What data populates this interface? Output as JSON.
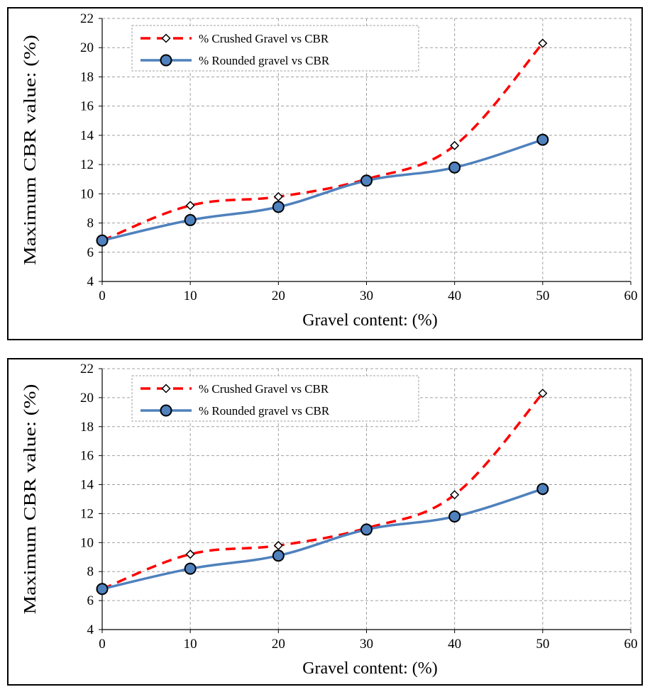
{
  "chart_data": [
    {
      "type": "line",
      "xlabel": "Gravel content: (%)",
      "ylabel": "Maximum CBR value: (%)",
      "xlim": [
        0,
        60
      ],
      "ylim": [
        4,
        22
      ],
      "xticks": [
        "0",
        "10",
        "20",
        "30",
        "40",
        "50",
        "60"
      ],
      "yticks": [
        "4",
        "6",
        "8",
        "10",
        "12",
        "14",
        "16",
        "18",
        "20",
        "22"
      ],
      "grid": true,
      "legend_position": "top-left",
      "x": [
        0,
        10,
        20,
        30,
        40,
        50
      ],
      "series": [
        {
          "name": "% Crushed Gravel vs CBR",
          "values": [
            6.8,
            9.2,
            9.8,
            11.0,
            13.3,
            20.3
          ],
          "color": "#ff0000",
          "line": "dashed",
          "marker": "diamond-open"
        },
        {
          "name": "% Rounded gravel vs CBR",
          "values": [
            6.8,
            8.2,
            9.1,
            10.9,
            11.8,
            13.7
          ],
          "color": "#4f81bd",
          "line": "solid",
          "marker": "circle"
        }
      ]
    },
    {
      "type": "line",
      "xlabel": "Gravel content: (%)",
      "ylabel": "Maximum CBR value: (%)",
      "xlim": [
        0,
        60
      ],
      "ylim": [
        4,
        22
      ],
      "xticks": [
        "0",
        "10",
        "20",
        "30",
        "40",
        "50",
        "60"
      ],
      "yticks": [
        "4",
        "6",
        "8",
        "10",
        "12",
        "14",
        "16",
        "18",
        "20",
        "22"
      ],
      "grid": true,
      "legend_position": "top-left",
      "x": [
        0,
        10,
        20,
        30,
        40,
        50
      ],
      "series": [
        {
          "name": "% Crushed Gravel vs CBR",
          "values": [
            6.8,
            9.2,
            9.8,
            11.0,
            13.3,
            20.3
          ],
          "color": "#ff0000",
          "line": "dashed",
          "marker": "diamond-open"
        },
        {
          "name": "% Rounded gravel vs CBR",
          "values": [
            6.8,
            8.2,
            9.1,
            10.9,
            11.8,
            13.7
          ],
          "color": "#4f81bd",
          "line": "solid",
          "marker": "circle"
        }
      ]
    }
  ]
}
